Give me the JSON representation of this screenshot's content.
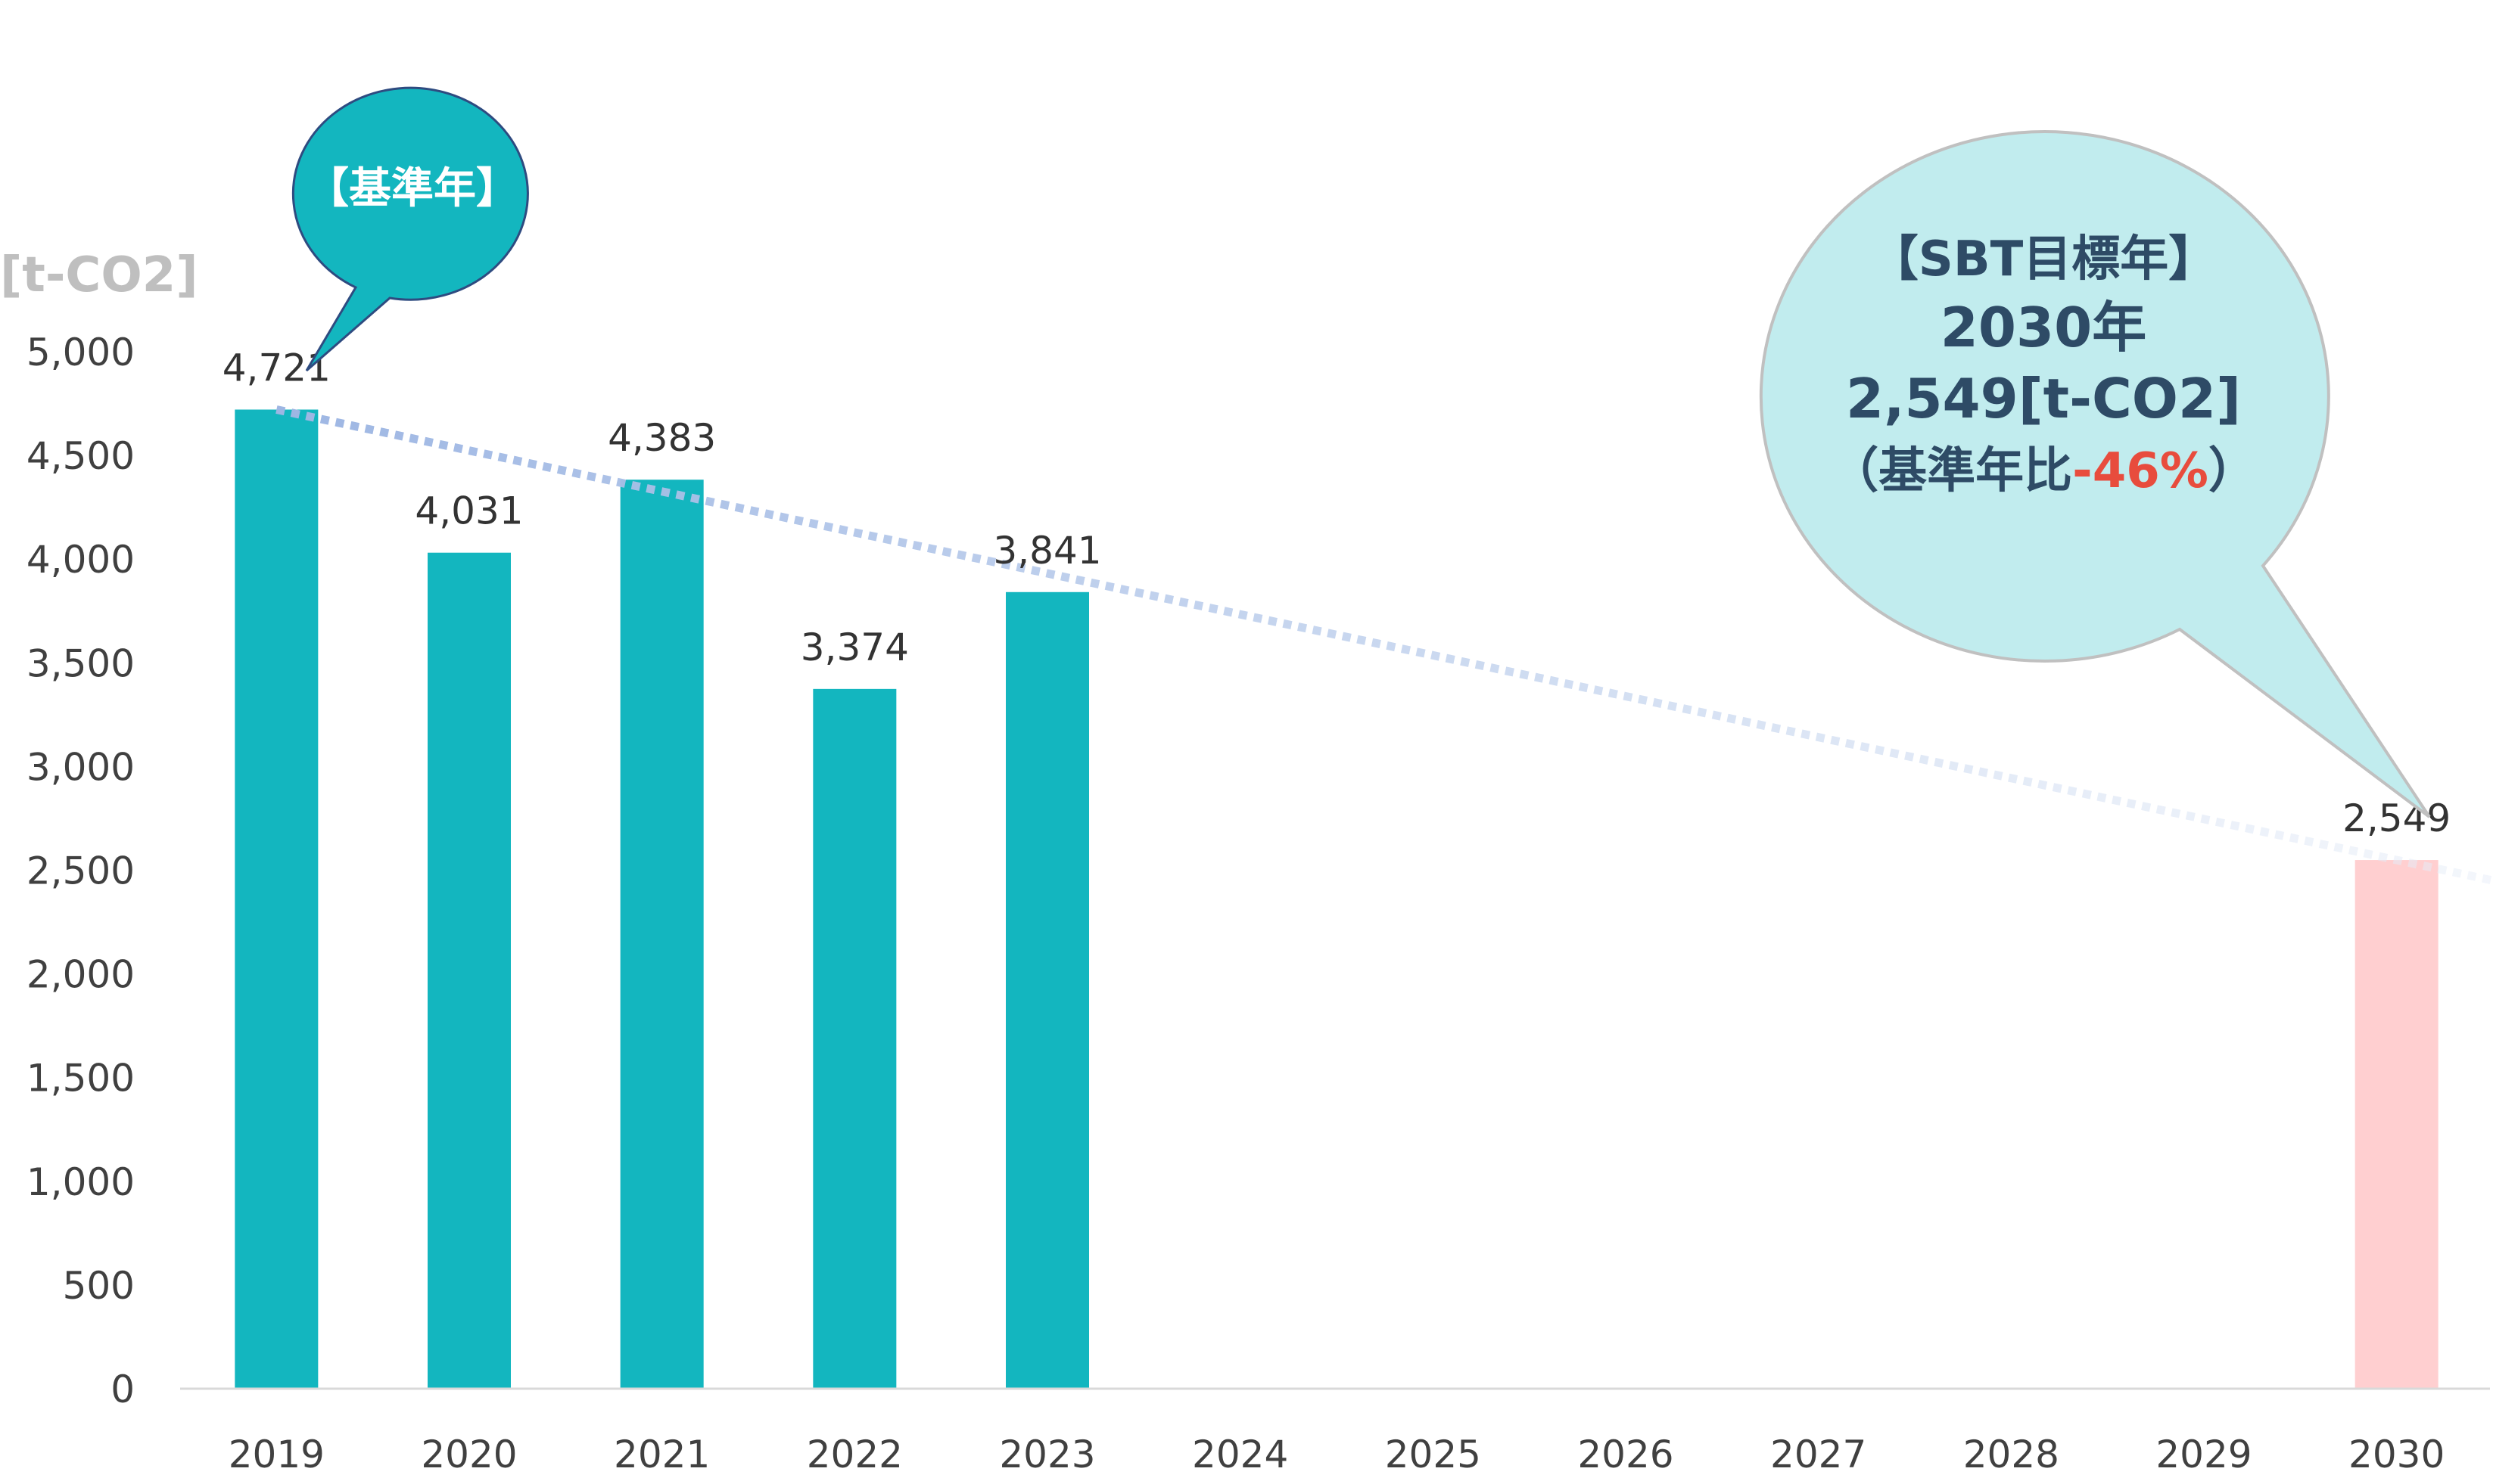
{
  "chart_data": {
    "type": "bar",
    "unit_label": "[t-CO2]",
    "categories": [
      "2019",
      "2020",
      "2021",
      "2022",
      "2023",
      "2024",
      "2025",
      "2026",
      "2027",
      "2028",
      "2029",
      "2030"
    ],
    "values": [
      4721,
      4031,
      4383,
      3374,
      3841,
      null,
      null,
      null,
      null,
      null,
      null,
      2549
    ],
    "value_labels": [
      "4,721",
      "4,031",
      "4,383",
      "3,374",
      "3,841",
      "",
      "",
      "",
      "",
      "",
      "",
      "2,549"
    ],
    "ylim": [
      0,
      5000
    ],
    "yticks": [
      0,
      500,
      1000,
      1500,
      2000,
      2500,
      3000,
      3500,
      4000,
      4500,
      5000
    ],
    "ytick_labels": [
      "0",
      "500",
      "1,000",
      "1,500",
      "2,000",
      "2,500",
      "3,000",
      "3,500",
      "4,000",
      "4,500",
      "5,000"
    ],
    "grid": false,
    "colors": {
      "actual_bar": "#13b6bf",
      "target_bar": "#ffcfd0",
      "trend_line": "#aec4e6",
      "base_bubble": "#13b6bf",
      "base_bubble_border": "#2e4b80",
      "target_bubble": "#c1ecee",
      "target_bubble_border": "#c0c0c0",
      "target_text": "#2e4b66",
      "highlight_text": "#e84c3d"
    },
    "trendline": {
      "from_category": "2019",
      "from_value": 4721,
      "to_category": "2030",
      "to_value": 2549,
      "style": "dotted"
    },
    "annotations": {
      "base_year": {
        "text": "【基準年】",
        "category": "2019"
      },
      "target": {
        "line1": "【SBT目標年】",
        "line2": "2030年",
        "line3": "2,549[t-CO2]",
        "line4_prefix": "（基準年比",
        "line4_highlight": "-46%",
        "line4_suffix": "）",
        "category": "2030"
      }
    }
  }
}
